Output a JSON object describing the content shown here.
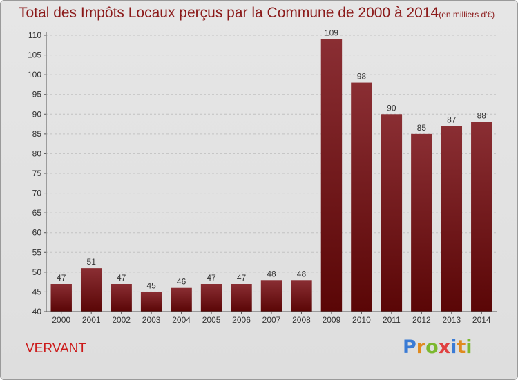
{
  "header": {
    "title": "Total des Impôts Locaux perçus par la Commune de 2000 à 2014",
    "unit": "(en milliers d'€)"
  },
  "footer": {
    "commune": "VERVANT",
    "logo": "Proxiti"
  },
  "colors": {
    "bar_top": "#8a2e33",
    "bar_bottom": "#5a0606",
    "title": "#8b1a1a",
    "commune": "#cc1a1a"
  },
  "chart_data": {
    "type": "bar",
    "categories": [
      "2000",
      "2001",
      "2002",
      "2003",
      "2004",
      "2005",
      "2006",
      "2007",
      "2008",
      "2009",
      "2010",
      "2011",
      "2012",
      "2013",
      "2014"
    ],
    "values": [
      47,
      51,
      47,
      45,
      46,
      47,
      47,
      48,
      48,
      109,
      98,
      90,
      85,
      87,
      88
    ],
    "ylim": [
      40,
      110
    ],
    "yticks": [
      40,
      45,
      50,
      55,
      60,
      65,
      70,
      75,
      80,
      85,
      90,
      95,
      100,
      105,
      110
    ],
    "grid": true,
    "data_labels": true
  }
}
